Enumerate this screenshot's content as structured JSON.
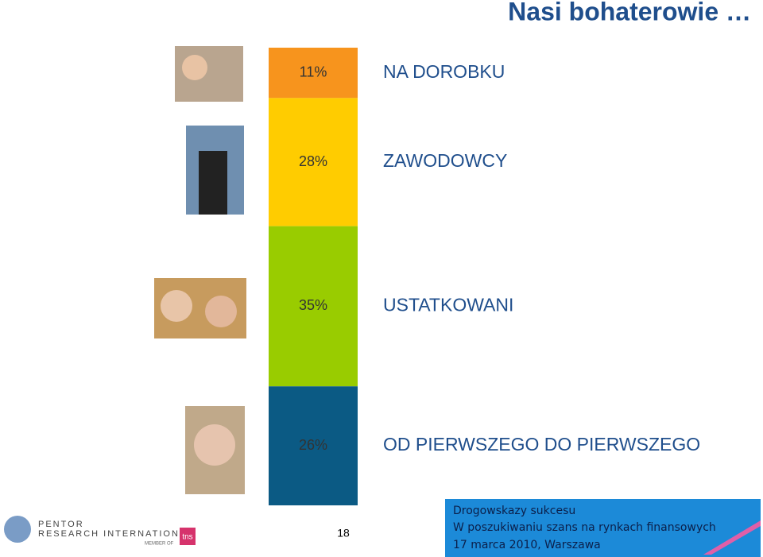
{
  "chart_data": {
    "type": "stacked-bar",
    "title": "Nasi bohaterowie …",
    "series": [
      {
        "name": "NA DOROBKU",
        "color": "#f7941d",
        "values": [
          11
        ],
        "value_labels": [
          "11%"
        ]
      },
      {
        "name": "ZAWODOWCY",
        "color": "#ffcc00",
        "values": [
          28
        ],
        "value_labels": [
          "28%"
        ]
      },
      {
        "name": "USTATKOWANI",
        "color": "#99cc00",
        "values": [
          35
        ],
        "value_labels": [
          "35%"
        ]
      },
      {
        "name": "OD PIERWSZEGO DO PIERWSZEGO",
        "color": "#0b5a84",
        "values": [
          26
        ],
        "value_labels": [
          "26%"
        ]
      }
    ]
  },
  "page_number": "18",
  "logo": {
    "line1": "PENTOR",
    "line2": "RESEARCH INTERNATIONAL",
    "member": "MEMBER OF",
    "brand": "tns"
  },
  "footer": {
    "line1": "Drogowskazy sukcesu",
    "line2": "W poszukiwaniu szans na rynkach finansowych",
    "line3": "17 marca 2010, Warszawa"
  }
}
